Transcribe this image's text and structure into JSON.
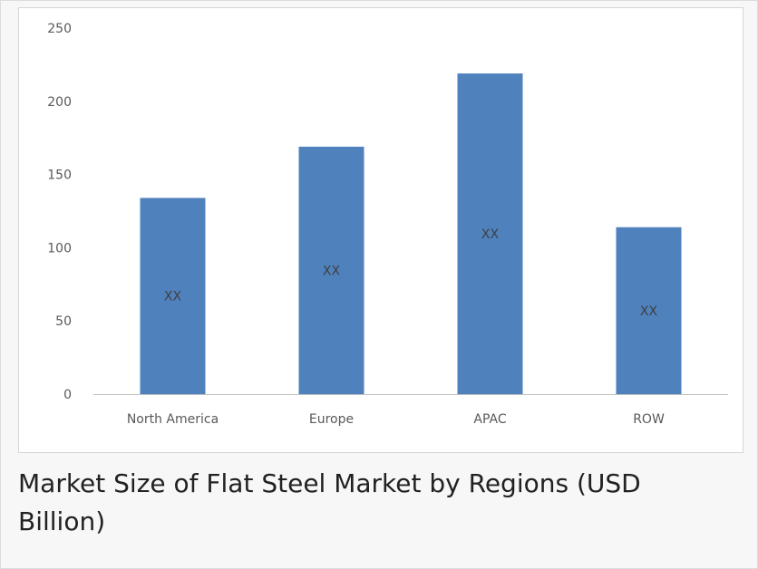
{
  "caption": "Market Size of Flat Steel Market by Regions (USD Billion)",
  "chart_data": {
    "type": "bar",
    "categories": [
      "North America",
      "Europe",
      "APAC",
      "ROW"
    ],
    "values": [
      134,
      169,
      219,
      114
    ],
    "data_labels": [
      "XX",
      "XX",
      "XX",
      "XX"
    ],
    "ylim": [
      0,
      250
    ],
    "yticks": [
      0,
      50,
      100,
      150,
      200,
      250
    ],
    "grid": false,
    "legend": "none",
    "bar_color": "#4f81bd",
    "axis_color": "#bfbfbf"
  }
}
